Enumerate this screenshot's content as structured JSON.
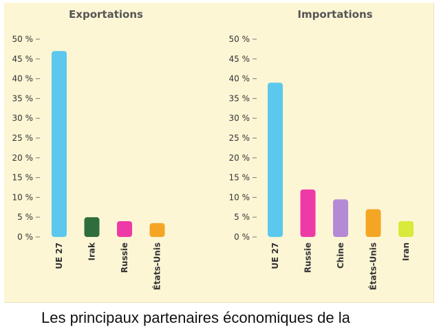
{
  "chart_data": [
    {
      "type": "bar",
      "title": "Exportations",
      "categories": [
        "UE 27",
        "Irak",
        "Russie",
        "États-Unis"
      ],
      "values": [
        47,
        5,
        4,
        3.5
      ],
      "colors": [
        "#5cc8ee",
        "#2e6e3c",
        "#ee3aa6",
        "#f5a524"
      ],
      "yticks": [
        "50 %",
        "45 %",
        "40 %",
        "35 %",
        "30 %",
        "25 %",
        "20 %",
        "15 %",
        "10 %",
        "5 %",
        "0 %"
      ],
      "ylim": [
        0,
        50
      ],
      "xlabel": "",
      "ylabel": "",
      "grid": false
    },
    {
      "type": "bar",
      "title": "Importations",
      "categories": [
        "UE 27",
        "Russie",
        "Chine",
        "États-Unis",
        "Iran"
      ],
      "values": [
        39,
        12,
        9.5,
        7,
        4
      ],
      "colors": [
        "#5cc8ee",
        "#ee3aa6",
        "#b48ad6",
        "#f5a524",
        "#d9ea3a"
      ],
      "yticks": [
        "50 %",
        "45 %",
        "40 %",
        "35 %",
        "30 %",
        "25 %",
        "20 %",
        "15 %",
        "10 %",
        "5 %",
        "0 %"
      ],
      "ylim": [
        0,
        50
      ],
      "xlabel": "",
      "ylabel": "",
      "grid": false
    }
  ],
  "caption": "Les principaux partenaires économiques de la"
}
